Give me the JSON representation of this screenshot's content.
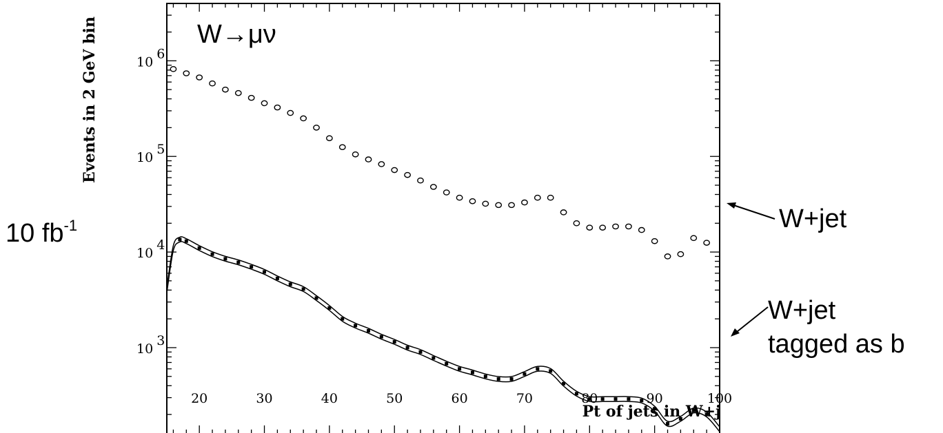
{
  "chart_data": {
    "type": "scatter",
    "title": "W→μν",
    "xlabel": "Pt of jets in W+j",
    "ylabel": "Events in 2 GeV bin",
    "luminosity_label": {
      "value": "10 fb",
      "superscript": "-1"
    },
    "xlim": [
      15,
      100
    ],
    "ylim_log10": [
      2.1,
      6.6
    ],
    "yscale": "log",
    "x_ticks": [
      20,
      30,
      40,
      50,
      60,
      70,
      80,
      90,
      100
    ],
    "y_ticks": [
      {
        "base": "10",
        "exp": "3",
        "value": 1000
      },
      {
        "base": "10",
        "exp": "4",
        "value": 10000
      },
      {
        "base": "10",
        "exp": "5",
        "value": 100000
      },
      {
        "base": "10",
        "exp": "6",
        "value": 1000000
      }
    ],
    "series": [
      {
        "name": "W+jet",
        "marker": "open-circle",
        "x": [
          16,
          18,
          20,
          22,
          24,
          26,
          28,
          30,
          32,
          34,
          36,
          38,
          40,
          42,
          44,
          46,
          48,
          50,
          52,
          54,
          56,
          58,
          60,
          62,
          64,
          66,
          68,
          70,
          72,
          74,
          76,
          78,
          80,
          82,
          84,
          86,
          88,
          90,
          92,
          94,
          96,
          98
        ],
        "y": [
          820000,
          740000,
          670000,
          580000,
          500000,
          460000,
          410000,
          360000,
          325000,
          285000,
          250000,
          200000,
          155000,
          125000,
          105000,
          93000,
          83000,
          72000,
          64000,
          56000,
          48000,
          42000,
          37000,
          34000,
          32000,
          31000,
          31000,
          33000,
          37000,
          37000,
          26000,
          20000,
          18000,
          18000,
          18500,
          18500,
          17000,
          13000,
          9000,
          9500,
          14000,
          12500
        ]
      },
      {
        "name": "W+jet tagged as b",
        "marker": "filled-dot-band",
        "x": [
          15,
          16,
          17,
          18,
          20,
          22,
          24,
          26,
          28,
          30,
          32,
          34,
          36,
          38,
          40,
          42,
          44,
          46,
          48,
          50,
          52,
          54,
          56,
          58,
          60,
          62,
          64,
          66,
          68,
          70,
          72,
          74,
          76,
          78,
          80,
          82,
          84,
          86,
          88,
          90,
          92,
          94,
          96,
          98,
          100
        ],
        "y": [
          4000,
          11000,
          13500,
          13000,
          11000,
          9500,
          8500,
          7800,
          7000,
          6200,
          5300,
          4600,
          4100,
          3300,
          2600,
          2000,
          1700,
          1500,
          1300,
          1150,
          1000,
          900,
          780,
          680,
          600,
          550,
          500,
          470,
          470,
          530,
          600,
          570,
          420,
          330,
          290,
          290,
          290,
          290,
          280,
          230,
          160,
          180,
          220,
          200,
          140
        ]
      }
    ],
    "annotations": [
      {
        "text": "W+jet",
        "points_to": "W+jet"
      },
      {
        "lines": [
          "W+jet",
          "tagged as b"
        ],
        "points_to": "W+jet tagged as b"
      }
    ]
  }
}
